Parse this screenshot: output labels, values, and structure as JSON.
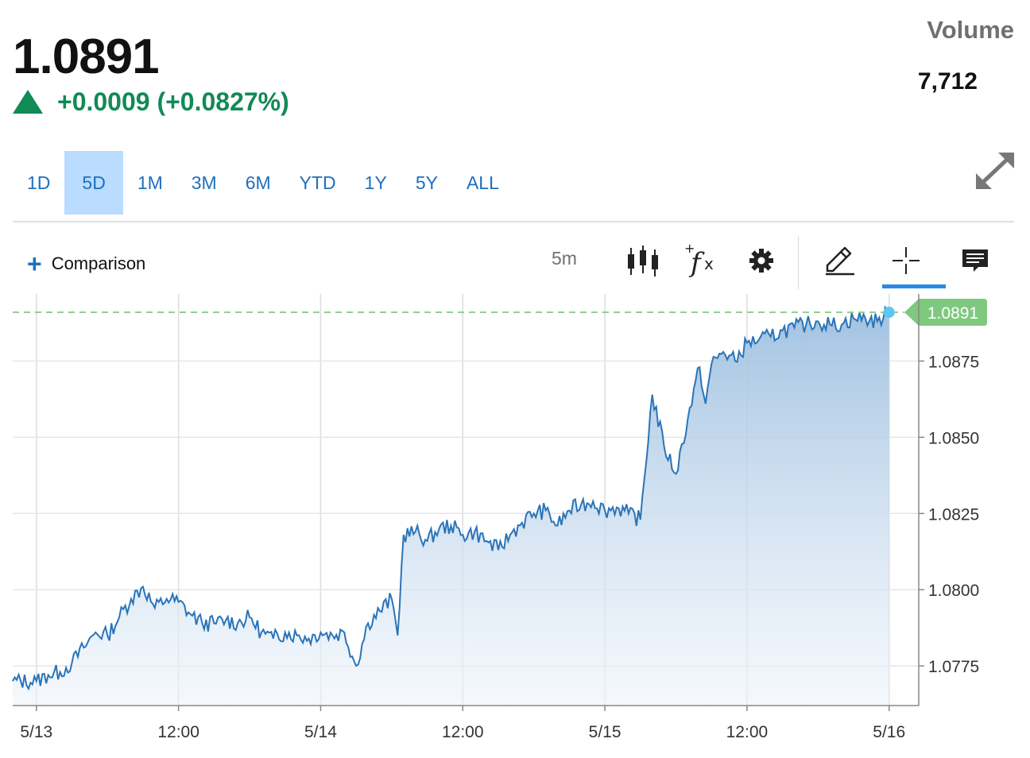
{
  "quote": {
    "price": "1.0891",
    "change": "+0.0009 (+0.0827%)",
    "up_color": "#128a55"
  },
  "volume": {
    "label": "Volume",
    "value": "7,712"
  },
  "ranges": {
    "r1d": "1D",
    "r5d": "5D",
    "r1m": "1M",
    "r3m": "3M",
    "r6m": "6M",
    "rytd": "YTD",
    "r1y": "1Y",
    "r5y": "5Y",
    "rall": "ALL",
    "active": "5D"
  },
  "toolbar": {
    "comparison_label": "Comparison",
    "interval": "5m",
    "icons": [
      "candlestick-icon",
      "function-icon",
      "gear-icon",
      "pencil-icon",
      "crosshair-icon",
      "comment-icon"
    ]
  },
  "chart_data": {
    "type": "area",
    "title": "",
    "xlabel": "",
    "ylabel": "",
    "x_ticks": [
      "5/13",
      "12:00",
      "5/14",
      "12:00",
      "5/15",
      "12:00",
      "5/16"
    ],
    "y_ticks": [
      "1.0775",
      "1.0800",
      "1.0825",
      "1.0850",
      "1.0875"
    ],
    "ylim": [
      1.0762,
      1.0897
    ],
    "last_price_label": "1.0891",
    "last_value": 1.0891,
    "grid": true,
    "line_color": "#2a74b8",
    "fill_color": "#a8c6e4",
    "series": [
      {
        "x": [
          "5/12 22:00",
          "5/13 00:00",
          "5/13 01:00",
          "5/13 02:00",
          "5/13 03:00",
          "5/13 04:00",
          "5/13 05:00",
          "5/13 06:00",
          "5/13 07:00",
          "5/13 08:00",
          "5/13 09:00",
          "5/13 10:00",
          "5/13 11:00",
          "5/13 12:00",
          "5/13 13:00",
          "5/13 14:00",
          "5/13 15:00",
          "5/13 16:00",
          "5/13 17:00",
          "5/13 18:00",
          "5/13 19:00",
          "5/13 20:00",
          "5/13 21:00",
          "5/13 22:00",
          "5/13 23:00",
          "5/14 00:00",
          "5/14 01:00",
          "5/14 02:00",
          "5/14 03:00",
          "5/14 04:00",
          "5/14 05:00",
          "5/14 06:00",
          "5/14 06:30",
          "5/14 07:00",
          "5/14 08:00",
          "5/14 09:00",
          "5/14 10:00",
          "5/14 11:00",
          "5/14 12:00",
          "5/14 13:00",
          "5/14 14:00",
          "5/14 15:00",
          "5/14 16:00",
          "5/14 17:00",
          "5/14 18:00",
          "5/14 19:00",
          "5/14 20:00",
          "5/14 21:00",
          "5/14 22:00",
          "5/14 23:00",
          "5/15 00:00",
          "5/15 01:00",
          "5/15 02:00",
          "5/15 03:00",
          "5/15 04:00",
          "5/15 05:00",
          "5/15 06:00",
          "5/15 07:00",
          "5/15 08:00",
          "5/15 08:30",
          "5/15 09:00",
          "5/15 10:00",
          "5/15 11:00",
          "5/15 12:00",
          "5/15 13:00",
          "5/15 14:00",
          "5/15 15:00",
          "5/15 16:00",
          "5/15 17:00",
          "5/15 18:00",
          "5/15 19:00",
          "5/15 20:00",
          "5/15 21:00",
          "5/15 22:00",
          "5/15 23:00",
          "5/16 00:00"
        ],
        "values": [
          1.077,
          1.077,
          1.0772,
          1.0773,
          1.0776,
          1.0781,
          1.0786,
          1.0785,
          1.0791,
          1.0797,
          1.0801,
          1.0794,
          1.0797,
          1.0796,
          1.0792,
          1.0789,
          1.0789,
          1.079,
          1.0789,
          1.0791,
          1.0786,
          1.0784,
          1.0786,
          1.0785,
          1.0784,
          1.0786,
          1.0785,
          1.0786,
          1.0775,
          1.0789,
          1.0793,
          1.0797,
          1.0785,
          1.0818,
          1.0819,
          1.0816,
          1.082,
          1.0821,
          1.0818,
          1.0819,
          1.0816,
          1.0813,
          1.0818,
          1.0822,
          1.0825,
          1.0826,
          1.0821,
          1.0826,
          1.0828,
          1.0829,
          1.0826,
          1.0827,
          1.0825,
          1.0823,
          1.0864,
          1.0847,
          1.0838,
          1.0856,
          1.0873,
          1.0861,
          1.0874,
          1.0878,
          1.0875,
          1.0881,
          1.0882,
          1.0883,
          1.0885,
          1.0886,
          1.0887,
          1.0888,
          1.0887,
          1.0887,
          1.0889,
          1.0889,
          1.0888,
          1.0891
        ]
      }
    ]
  }
}
